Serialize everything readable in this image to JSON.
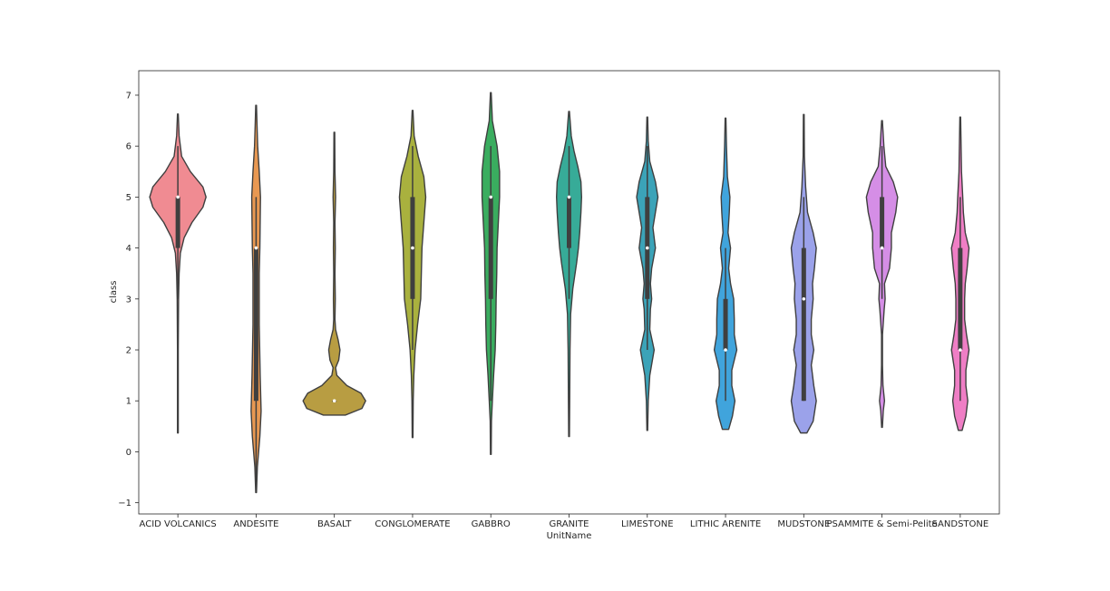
{
  "chart_data": {
    "type": "violin",
    "xlabel": "UnitName",
    "ylabel": "class",
    "ylim": [
      -1.22,
      7.48
    ],
    "yticks": [
      -1,
      0,
      1,
      2,
      3,
      4,
      5,
      6,
      7
    ],
    "ytick_labels": [
      "−1",
      "0",
      "1",
      "2",
      "3",
      "4",
      "5",
      "6",
      "7"
    ],
    "grid": false,
    "legend": "none",
    "categories": [
      {
        "label": "ACID VOLCANICS",
        "color": "#f08b92",
        "range": [
          0.37,
          6.63
        ],
        "median": 5,
        "q1": 4,
        "q3": 5,
        "whisker": [
          3,
          6
        ],
        "density": [
          [
            0.37,
            0.012
          ],
          [
            1,
            0.012
          ],
          [
            2,
            0.012
          ],
          [
            3,
            0.022
          ],
          [
            3.5,
            0.04
          ],
          [
            3.9,
            0.08
          ],
          [
            4.2,
            0.2
          ],
          [
            4.5,
            0.45
          ],
          [
            4.8,
            0.8
          ],
          [
            5,
            0.9
          ],
          [
            5.2,
            0.8
          ],
          [
            5.5,
            0.4
          ],
          [
            5.8,
            0.12
          ],
          [
            6.2,
            0.04
          ],
          [
            6.63,
            0.012
          ]
        ]
      },
      {
        "label": "ANDESITE",
        "color": "#e89852",
        "range": [
          -0.8,
          6.8
        ],
        "median": 4,
        "q1": 1,
        "q3": 4,
        "whisker": [
          -0.8,
          5
        ],
        "density": [
          [
            -0.8,
            0.012
          ],
          [
            -0.3,
            0.04
          ],
          [
            0.3,
            0.12
          ],
          [
            0.8,
            0.16
          ],
          [
            1.5,
            0.13
          ],
          [
            2.5,
            0.1
          ],
          [
            3.5,
            0.1
          ],
          [
            4,
            0.12
          ],
          [
            4.5,
            0.13
          ],
          [
            5,
            0.14
          ],
          [
            5.5,
            0.1
          ],
          [
            6,
            0.05
          ],
          [
            6.4,
            0.03
          ],
          [
            6.8,
            0.012
          ]
        ]
      },
      {
        "label": "BASALT",
        "color": "#b89d42",
        "range": [
          0.72,
          6.27
        ],
        "median": 1,
        "q1": 1,
        "q3": 1,
        "whisker": [
          1,
          1
        ],
        "density": [
          [
            0.72,
            0.35
          ],
          [
            0.85,
            0.88
          ],
          [
            1,
            1
          ],
          [
            1.15,
            0.85
          ],
          [
            1.3,
            0.4
          ],
          [
            1.5,
            0.08
          ],
          [
            1.65,
            0.04
          ],
          [
            1.8,
            0.14
          ],
          [
            2,
            0.18
          ],
          [
            2.2,
            0.12
          ],
          [
            2.4,
            0.04
          ],
          [
            2.6,
            0.02
          ],
          [
            3,
            0.03
          ],
          [
            3.5,
            0.02
          ],
          [
            4,
            0.03
          ],
          [
            4.5,
            0.02
          ],
          [
            5,
            0.04
          ],
          [
            5.5,
            0.02
          ],
          [
            6.27,
            0.012
          ]
        ]
      },
      {
        "label": "CONGLOMERATE",
        "color": "#a9b13e",
        "range": [
          0.28,
          6.7
        ],
        "median": 4,
        "q1": 3,
        "q3": 5,
        "whisker": [
          2,
          6
        ],
        "density": [
          [
            0.28,
            0.012
          ],
          [
            1,
            0.02
          ],
          [
            1.5,
            0.04
          ],
          [
            2,
            0.08
          ],
          [
            2.5,
            0.16
          ],
          [
            3,
            0.26
          ],
          [
            3.5,
            0.28
          ],
          [
            4,
            0.3
          ],
          [
            4.5,
            0.36
          ],
          [
            5,
            0.42
          ],
          [
            5.4,
            0.36
          ],
          [
            5.8,
            0.18
          ],
          [
            6.2,
            0.05
          ],
          [
            6.7,
            0.012
          ]
        ]
      },
      {
        "label": "GABBRO",
        "color": "#3aad5f",
        "range": [
          -0.05,
          7.05
        ],
        "median": 5,
        "q1": 3,
        "q3": 5,
        "whisker": [
          1,
          6
        ],
        "density": [
          [
            -0.05,
            0.012
          ],
          [
            0.6,
            0.02
          ],
          [
            1,
            0.05
          ],
          [
            1.5,
            0.09
          ],
          [
            2,
            0.14
          ],
          [
            2.5,
            0.16
          ],
          [
            3,
            0.17
          ],
          [
            3.5,
            0.19
          ],
          [
            4,
            0.2
          ],
          [
            4.5,
            0.24
          ],
          [
            5,
            0.28
          ],
          [
            5.5,
            0.28
          ],
          [
            6,
            0.2
          ],
          [
            6.5,
            0.05
          ],
          [
            7.05,
            0.012
          ]
        ]
      },
      {
        "label": "GRANITE",
        "color": "#37ab98",
        "range": [
          0.3,
          6.68
        ],
        "median": 5,
        "q1": 4,
        "q3": 5,
        "whisker": [
          3,
          6
        ],
        "density": [
          [
            0.3,
            0.012
          ],
          [
            1,
            0.02
          ],
          [
            2,
            0.03
          ],
          [
            2.7,
            0.05
          ],
          [
            3.2,
            0.12
          ],
          [
            3.7,
            0.24
          ],
          [
            4,
            0.3
          ],
          [
            4.3,
            0.34
          ],
          [
            4.7,
            0.38
          ],
          [
            5,
            0.4
          ],
          [
            5.3,
            0.38
          ],
          [
            5.6,
            0.28
          ],
          [
            5.9,
            0.16
          ],
          [
            6.2,
            0.07
          ],
          [
            6.68,
            0.012
          ]
        ]
      },
      {
        "label": "LIMESTONE",
        "color": "#3ba3b8",
        "range": [
          0.42,
          6.57
        ],
        "median": 4,
        "q1": 3,
        "q3": 5,
        "whisker": [
          2,
          6
        ],
        "density": [
          [
            0.42,
            0.012
          ],
          [
            1,
            0.03
          ],
          [
            1.5,
            0.08
          ],
          [
            2,
            0.22
          ],
          [
            2.4,
            0.08
          ],
          [
            2.8,
            0.1
          ],
          [
            3,
            0.14
          ],
          [
            3.3,
            0.1
          ],
          [
            3.6,
            0.14
          ],
          [
            4,
            0.26
          ],
          [
            4.4,
            0.18
          ],
          [
            4.7,
            0.26
          ],
          [
            5,
            0.34
          ],
          [
            5.3,
            0.26
          ],
          [
            5.7,
            0.08
          ],
          [
            6.1,
            0.03
          ],
          [
            6.57,
            0.012
          ]
        ]
      },
      {
        "label": "LITHIC ARENITE",
        "color": "#40a4dc",
        "range": [
          0.44,
          6.55
        ],
        "median": 2,
        "q1": 2,
        "q3": 3,
        "whisker": [
          1,
          4
        ],
        "density": [
          [
            0.44,
            0.1
          ],
          [
            0.7,
            0.22
          ],
          [
            1,
            0.3
          ],
          [
            1.3,
            0.2
          ],
          [
            1.6,
            0.2
          ],
          [
            2,
            0.36
          ],
          [
            2.3,
            0.28
          ],
          [
            2.6,
            0.28
          ],
          [
            3,
            0.26
          ],
          [
            3.3,
            0.16
          ],
          [
            3.6,
            0.1
          ],
          [
            4,
            0.16
          ],
          [
            4.3,
            0.08
          ],
          [
            4.7,
            0.12
          ],
          [
            5,
            0.14
          ],
          [
            5.4,
            0.06
          ],
          [
            6,
            0.03
          ],
          [
            6.55,
            0.012
          ]
        ]
      },
      {
        "label": "MUDSTONE",
        "color": "#9ba2ea",
        "range": [
          0.37,
          6.62
        ],
        "median": 3,
        "q1": 1,
        "q3": 4,
        "whisker": [
          1,
          5
        ],
        "density": [
          [
            0.37,
            0.1
          ],
          [
            0.6,
            0.3
          ],
          [
            1,
            0.4
          ],
          [
            1.3,
            0.32
          ],
          [
            1.7,
            0.24
          ],
          [
            2,
            0.32
          ],
          [
            2.3,
            0.24
          ],
          [
            2.6,
            0.24
          ],
          [
            3,
            0.3
          ],
          [
            3.3,
            0.28
          ],
          [
            3.6,
            0.34
          ],
          [
            4,
            0.4
          ],
          [
            4.3,
            0.3
          ],
          [
            4.7,
            0.12
          ],
          [
            5.2,
            0.06
          ],
          [
            5.8,
            0.02
          ],
          [
            6.62,
            0.012
          ]
        ]
      },
      {
        "label": "PSAMMITE & Semi-Pelite",
        "color": "#d58ee6",
        "range": [
          0.48,
          6.5
        ],
        "median": 4,
        "q1": 4,
        "q3": 5,
        "whisker": [
          3,
          6
        ],
        "density": [
          [
            0.48,
            0.012
          ],
          [
            0.8,
            0.04
          ],
          [
            1,
            0.08
          ],
          [
            1.3,
            0.03
          ],
          [
            1.7,
            0.015
          ],
          [
            2.3,
            0.015
          ],
          [
            2.8,
            0.07
          ],
          [
            3,
            0.1
          ],
          [
            3.3,
            0.08
          ],
          [
            3.6,
            0.24
          ],
          [
            4,
            0.3
          ],
          [
            4.3,
            0.3
          ],
          [
            4.7,
            0.44
          ],
          [
            5,
            0.5
          ],
          [
            5.3,
            0.36
          ],
          [
            5.6,
            0.12
          ],
          [
            6,
            0.06
          ],
          [
            6.5,
            0.012
          ]
        ]
      },
      {
        "label": "SANDSTONE",
        "color": "#ef7ec5",
        "range": [
          0.42,
          6.57
        ],
        "median": 2,
        "q1": 2,
        "q3": 4,
        "whisker": [
          1,
          5
        ],
        "density": [
          [
            0.42,
            0.06
          ],
          [
            0.7,
            0.18
          ],
          [
            1,
            0.24
          ],
          [
            1.3,
            0.18
          ],
          [
            1.6,
            0.18
          ],
          [
            2,
            0.28
          ],
          [
            2.3,
            0.2
          ],
          [
            2.6,
            0.14
          ],
          [
            3,
            0.14
          ],
          [
            3.3,
            0.16
          ],
          [
            3.6,
            0.22
          ],
          [
            4,
            0.28
          ],
          [
            4.3,
            0.16
          ],
          [
            4.7,
            0.1
          ],
          [
            5,
            0.08
          ],
          [
            5.5,
            0.04
          ],
          [
            6.57,
            0.012
          ]
        ]
      }
    ]
  }
}
